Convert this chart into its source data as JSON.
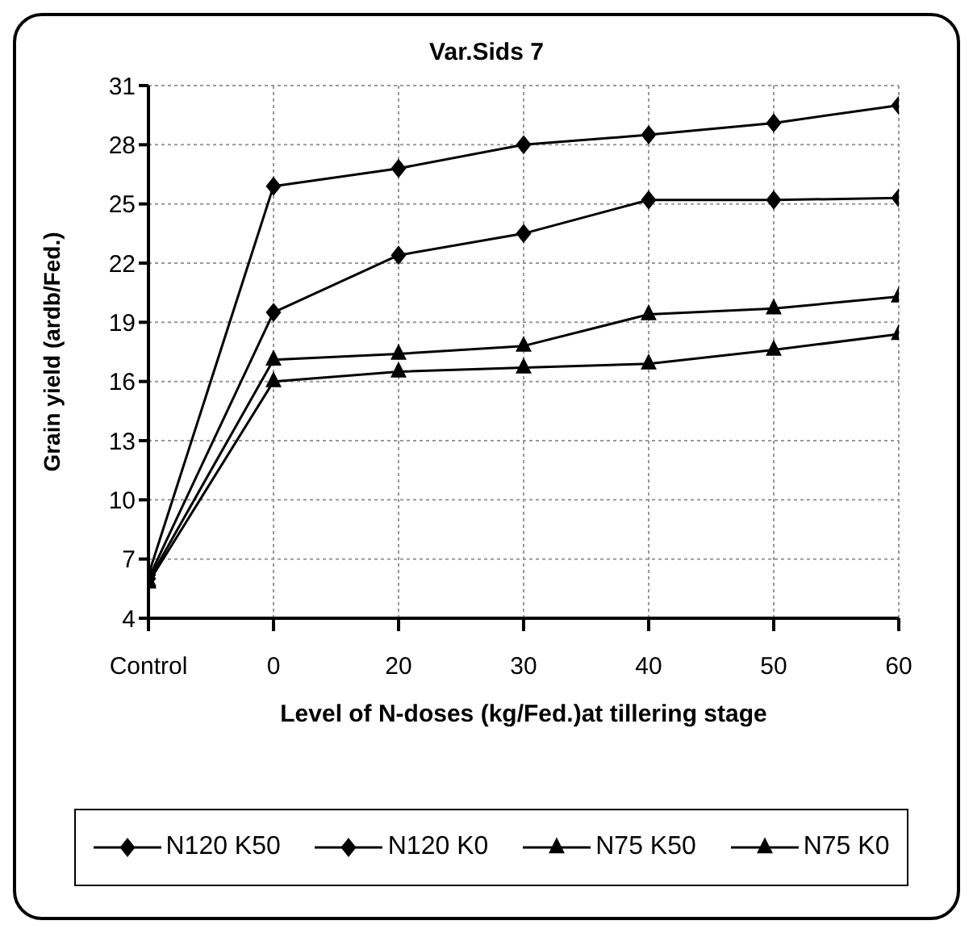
{
  "chart_data": {
    "type": "line",
    "title": "Var.Sids 7",
    "xlabel": "Level of N-doses (kg/Fed.)at tillering stage",
    "ylabel": "Grain yield (ardb/Fed.)",
    "categories": [
      "Control",
      "0",
      "20",
      "30",
      "40",
      "50",
      "60"
    ],
    "series": [
      {
        "name": "N120 K50",
        "color": "#000000",
        "marker": "diamond",
        "values": [
          6.2,
          25.9,
          26.8,
          28.0,
          28.5,
          29.1,
          30.0
        ]
      },
      {
        "name": "N120 K0",
        "color": "#000000",
        "marker": "diamond",
        "values": [
          6.0,
          19.5,
          22.4,
          23.5,
          25.2,
          25.2,
          25.3
        ]
      },
      {
        "name": "N75 K50",
        "color": "#000000",
        "marker": "triangle",
        "values": [
          5.9,
          17.1,
          17.4,
          17.8,
          19.4,
          19.7,
          20.3
        ]
      },
      {
        "name": "N75 K0",
        "color": "#000000",
        "marker": "triangle",
        "values": [
          5.8,
          16.0,
          16.5,
          16.7,
          16.9,
          17.6,
          18.4
        ]
      }
    ],
    "ylim": [
      4,
      31
    ],
    "yticks": [
      4,
      7,
      10,
      13,
      16,
      19,
      22,
      25,
      28,
      31
    ],
    "grid": true,
    "legend": "bottom",
    "line_style": "solid"
  }
}
